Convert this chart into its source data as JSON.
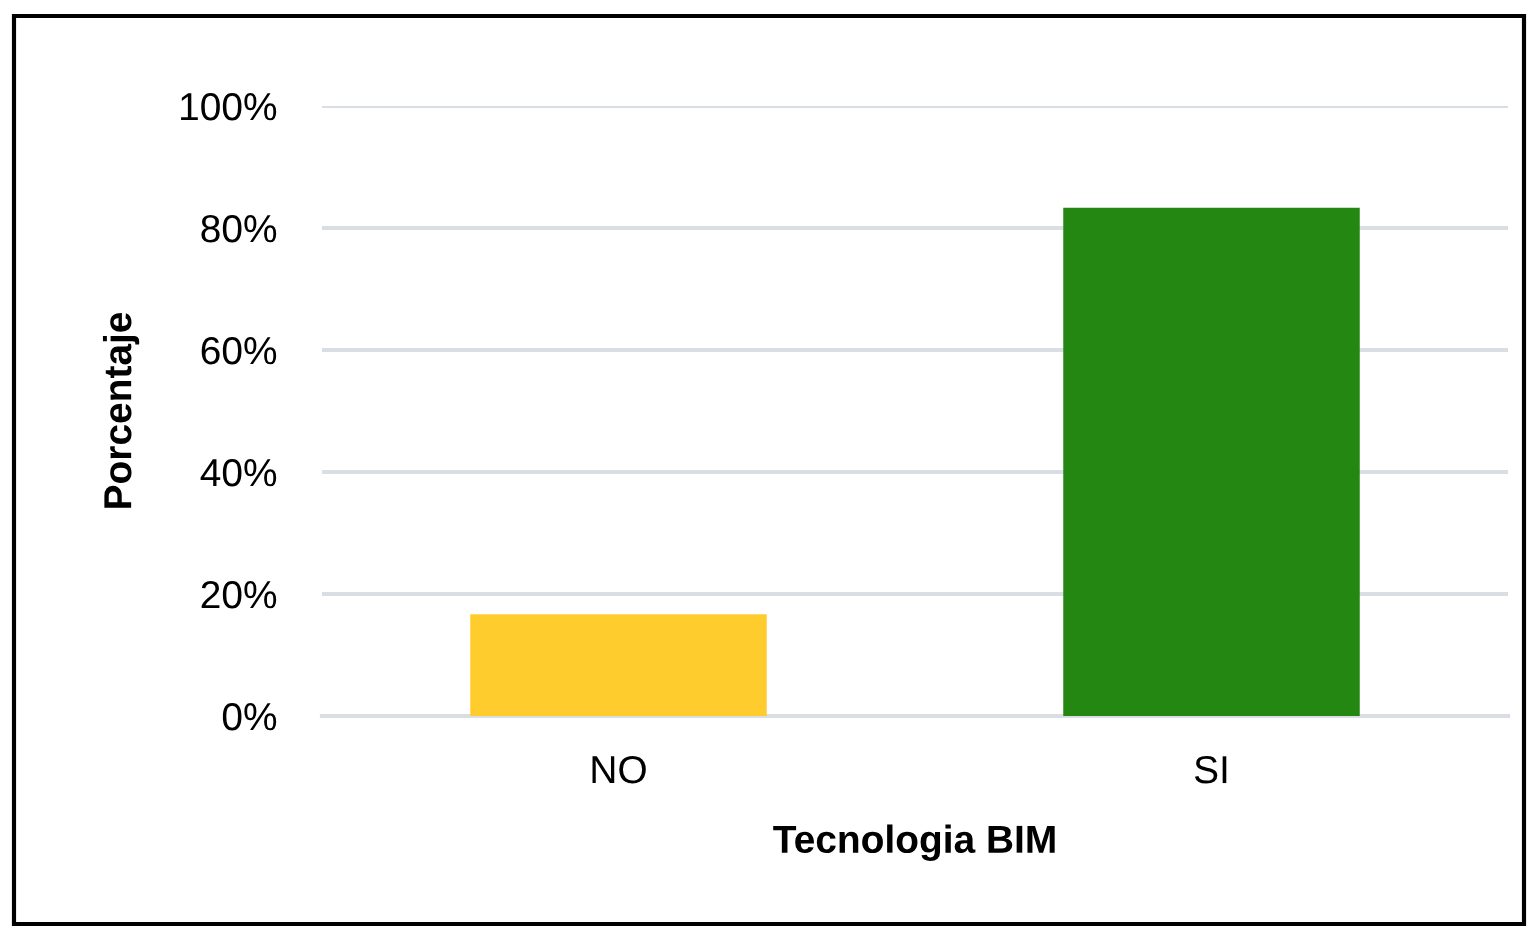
{
  "chart_data": {
    "type": "bar",
    "xlabel": "Tecnologia BIM",
    "ylabel": "Porcentaje",
    "categories": [
      "NO",
      "SI"
    ],
    "values": [
      16.7,
      83.3
    ],
    "colors": [
      "#ffcc2e",
      "#248711"
    ],
    "ylim": [
      0,
      100
    ],
    "yticks": [
      {
        "value": 0,
        "label": "0%"
      },
      {
        "value": 20,
        "label": "20%"
      },
      {
        "value": 40,
        "label": "40%"
      },
      {
        "value": 60,
        "label": "60%"
      },
      {
        "value": 80,
        "label": "80%"
      },
      {
        "value": 100,
        "label": "100%"
      }
    ],
    "grid": "y"
  }
}
